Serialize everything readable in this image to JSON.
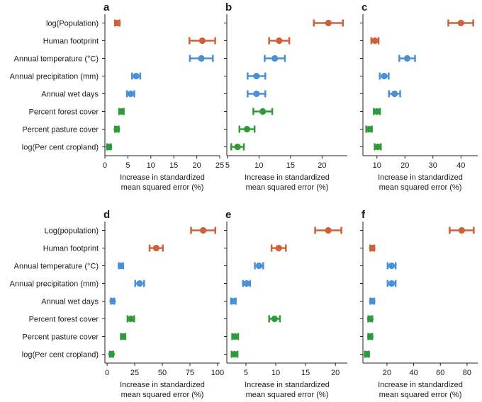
{
  "colors": {
    "red": "#d0603a",
    "blue": "#4a90d9",
    "green": "#2e9a3a"
  },
  "chart_data": [
    {
      "panel": "a",
      "type": "scatter",
      "categories": [
        "log(Population)",
        "Human footprint",
        "Annual temperature (°C)",
        "Annual precipitation (mm)",
        "Annual wet days",
        "Percent forest cover",
        "Percent pasture cover",
        "log(Per cent cropland)"
      ],
      "groups": [
        "red",
        "red",
        "blue",
        "blue",
        "blue",
        "green",
        "green",
        "green"
      ],
      "values": [
        2.7,
        21.2,
        21.0,
        6.8,
        5.6,
        3.6,
        2.6,
        0.9
      ],
      "error_low": [
        2.2,
        18.4,
        18.5,
        5.9,
        4.8,
        3.1,
        2.2,
        0.5
      ],
      "error_high": [
        3.2,
        24.0,
        23.5,
        7.7,
        6.4,
        4.1,
        3.0,
        1.3
      ],
      "xlim": [
        0,
        25
      ],
      "xticks": [
        0,
        5,
        10,
        15,
        20,
        25
      ],
      "xlabel": [
        "Increase in standardized",
        "mean squared error (%)"
      ]
    },
    {
      "panel": "b",
      "type": "scatter",
      "categories": [
        "log(Population)",
        "Human footprint",
        "Annual temperature (°C)",
        "Annual precipitation (mm)",
        "Annual wet days",
        "Percent forest cover",
        "Percent pasture cover",
        "log(Per cent cropland)"
      ],
      "groups": [
        "red",
        "red",
        "blue",
        "blue",
        "blue",
        "green",
        "green",
        "green"
      ],
      "values": [
        21.0,
        13.2,
        12.5,
        9.6,
        9.6,
        10.6,
        8.1,
        6.6
      ],
      "error_low": [
        18.7,
        11.6,
        10.9,
        8.2,
        8.2,
        9.1,
        6.9,
        5.6
      ],
      "error_high": [
        23.3,
        14.8,
        14.1,
        11.0,
        11.0,
        12.1,
        9.3,
        7.6
      ],
      "xlim": [
        4.9,
        24
      ],
      "xticks": [
        5,
        10,
        15,
        20
      ],
      "xlabel": [
        "Increase in standardized",
        "mean squared error (%)"
      ]
    },
    {
      "panel": "c",
      "type": "scatter",
      "categories": [
        "log(Population)",
        "Human footprint",
        "Annual temperature (°C)",
        "Annual precipitation (mm)",
        "Annual wet days",
        "Percent forest cover",
        "Percent pasture cover",
        "log(Per cent cropland)"
      ],
      "groups": [
        "red",
        "red",
        "blue",
        "blue",
        "blue",
        "green",
        "green",
        "green"
      ],
      "values": [
        40.0,
        9.3,
        20.8,
        12.6,
        16.3,
        10.0,
        7.2,
        10.3
      ],
      "error_low": [
        35.5,
        8.0,
        18.0,
        11.0,
        14.3,
        8.9,
        6.2,
        9.2
      ],
      "error_high": [
        44.4,
        10.6,
        23.6,
        14.2,
        18.3,
        11.1,
        8.2,
        11.4
      ],
      "xlim": [
        5,
        46
      ],
      "xticks": [
        10,
        20,
        30,
        40
      ],
      "xlabel": [
        "Increase in standardized",
        "mean squared error (%)"
      ]
    },
    {
      "panel": "d",
      "type": "scatter",
      "categories": [
        "Log(population)",
        "Human footprint",
        "Annual temperature (°C)",
        "Annual precipitation (mm)",
        "Annual wet days",
        "Percent forest cover",
        "Percent pasture cover",
        "log(Per cent cropland)"
      ],
      "groups": [
        "red",
        "red",
        "blue",
        "blue",
        "blue",
        "green",
        "green",
        "green"
      ],
      "values": [
        87.0,
        44.5,
        12.5,
        29.5,
        5.0,
        21.5,
        14.5,
        4.0
      ],
      "error_low": [
        76.0,
        38.5,
        10.5,
        25.5,
        3.5,
        18.5,
        12.5,
        2.5
      ],
      "error_high": [
        98.0,
        50.5,
        14.5,
        33.5,
        6.5,
        24.5,
        16.5,
        5.5
      ],
      "xlim": [
        -2,
        102
      ],
      "xticks": [
        0,
        25,
        50,
        75,
        100
      ],
      "xlabel": [
        "Increase in standardized",
        "mean squared error (%)"
      ]
    },
    {
      "panel": "e",
      "type": "scatter",
      "categories": [
        "Log(population)",
        "Human footprint",
        "Annual temperature (°C)",
        "Annual precipitation (mm)",
        "Annual wet days",
        "Percent forest cover",
        "Percent pasture cover",
        "log(Per cent cropland)"
      ],
      "groups": [
        "red",
        "red",
        "blue",
        "blue",
        "blue",
        "green",
        "green",
        "green"
      ],
      "values": [
        18.8,
        10.5,
        7.2,
        5.1,
        2.9,
        9.8,
        3.2,
        3.1
      ],
      "error_low": [
        16.6,
        9.3,
        6.5,
        4.5,
        2.5,
        8.9,
        2.7,
        2.6
      ],
      "error_high": [
        21.0,
        11.7,
        7.9,
        5.7,
        3.3,
        10.7,
        3.7,
        3.6
      ],
      "xlim": [
        1.8,
        22
      ],
      "xticks": [
        5,
        10,
        15,
        20
      ],
      "xlabel": [
        "Increase in standardized",
        "mean squared error (%)"
      ]
    },
    {
      "panel": "f",
      "type": "scatter",
      "categories": [
        "Log(population)",
        "Human footprint",
        "Annual temperature (°C)",
        "Annual precipitation (mm)",
        "Annual wet days",
        "Percent forest cover",
        "Percent pasture cover",
        "log(Per cent cropland)"
      ],
      "groups": [
        "red",
        "red",
        "blue",
        "blue",
        "blue",
        "green",
        "green",
        "green"
      ],
      "values": [
        76.0,
        9.0,
        23.5,
        23.5,
        9.0,
        7.5,
        7.5,
        5.0
      ],
      "error_low": [
        67.0,
        7.5,
        20.5,
        20.5,
        7.5,
        6.0,
        6.0,
        3.5
      ],
      "error_high": [
        85.0,
        10.5,
        26.5,
        26.5,
        10.5,
        9.0,
        9.0,
        6.5
      ],
      "xlim": [
        2,
        88
      ],
      "xticks": [
        20,
        40,
        60,
        80
      ],
      "xlabel": [
        "Increase in standardized",
        "mean squared error (%)"
      ]
    }
  ]
}
